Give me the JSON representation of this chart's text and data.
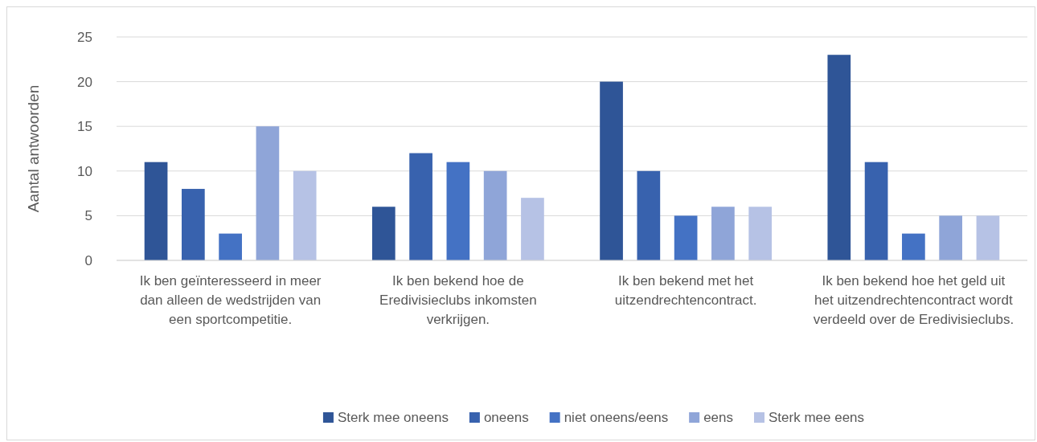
{
  "chart_data": {
    "type": "bar",
    "ylabel": "Aantal antwoorden",
    "categories": [
      "Ik ben geïnteresseerd in meer dan alleen de wedstrijden van een sportcompetitie.",
      "Ik ben bekend hoe de Eredivisieclubs inkomsten verkrijgen.",
      "Ik ben bekend met het uitzendrechtencontract.",
      "Ik ben bekend hoe het geld uit het uitzendrechtencontract wordt verdeeld over de Eredivisieclubs."
    ],
    "series": [
      {
        "name": "Sterk mee oneens",
        "color": "#2f5597",
        "values": [
          11,
          6,
          20,
          23
        ]
      },
      {
        "name": "oneens",
        "color": "#3862ae",
        "values": [
          8,
          12,
          10,
          11
        ]
      },
      {
        "name": "niet oneens/eens",
        "color": "#4472c4",
        "values": [
          3,
          11,
          5,
          3
        ]
      },
      {
        "name": "eens",
        "color": "#8fa5d8",
        "values": [
          15,
          10,
          6,
          5
        ]
      },
      {
        "name": "Sterk mee eens",
        "color": "#b6c2e5",
        "values": [
          10,
          7,
          6,
          5
        ]
      }
    ],
    "ylim": [
      0,
      25
    ],
    "yticks": [
      0,
      5,
      10,
      15,
      20,
      25
    ],
    "grid": "y",
    "legend": "bottom"
  }
}
